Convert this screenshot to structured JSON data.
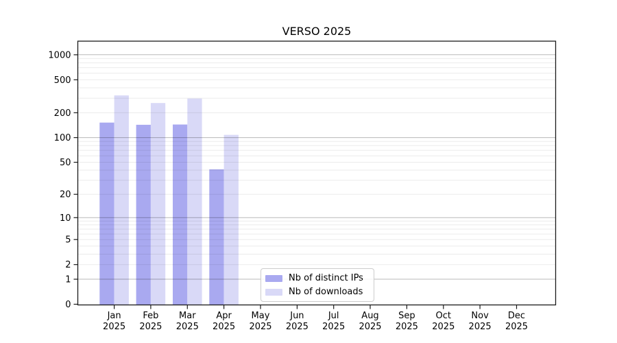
{
  "title": "VERSO 2025",
  "legend": {
    "items": [
      {
        "label": "Nb of distinct IPs",
        "color": "#a9a9f0"
      },
      {
        "label": "Nb of downloads",
        "color": "#d9d9f7"
      }
    ]
  },
  "chart_data": {
    "type": "bar",
    "title": "VERSO 2025",
    "categories": [
      "Jan 2025",
      "Feb 2025",
      "Mar 2025",
      "Apr 2025",
      "May 2025",
      "Jun 2025",
      "Jul 2025",
      "Aug 2025",
      "Sep 2025",
      "Oct 2025",
      "Nov 2025",
      "Dec 2025"
    ],
    "months": [
      "Jan",
      "Feb",
      "Mar",
      "Apr",
      "May",
      "Jun",
      "Jul",
      "Aug",
      "Sep",
      "Oct",
      "Nov",
      "Dec"
    ],
    "year": "2025",
    "series": [
      {
        "name": "Nb of distinct IPs",
        "color": "#a9a9f0",
        "values": [
          152,
          143,
          144,
          41,
          0,
          0,
          0,
          0,
          0,
          0,
          0,
          0
        ]
      },
      {
        "name": "Nb of downloads",
        "color": "#d9d9f7",
        "values": [
          324,
          262,
          297,
          108,
          0,
          0,
          0,
          0,
          0,
          0,
          0,
          0
        ]
      }
    ],
    "xlabel": "",
    "ylabel": "",
    "yscale": "log1p",
    "ylim": [
      0,
      1500
    ],
    "y_ticks": [
      1000,
      500,
      200,
      100,
      50,
      20,
      10,
      5,
      2,
      1,
      0
    ],
    "grid_major": [
      1,
      10,
      100,
      1000
    ],
    "grid": "on",
    "legend_position": "lower center"
  }
}
